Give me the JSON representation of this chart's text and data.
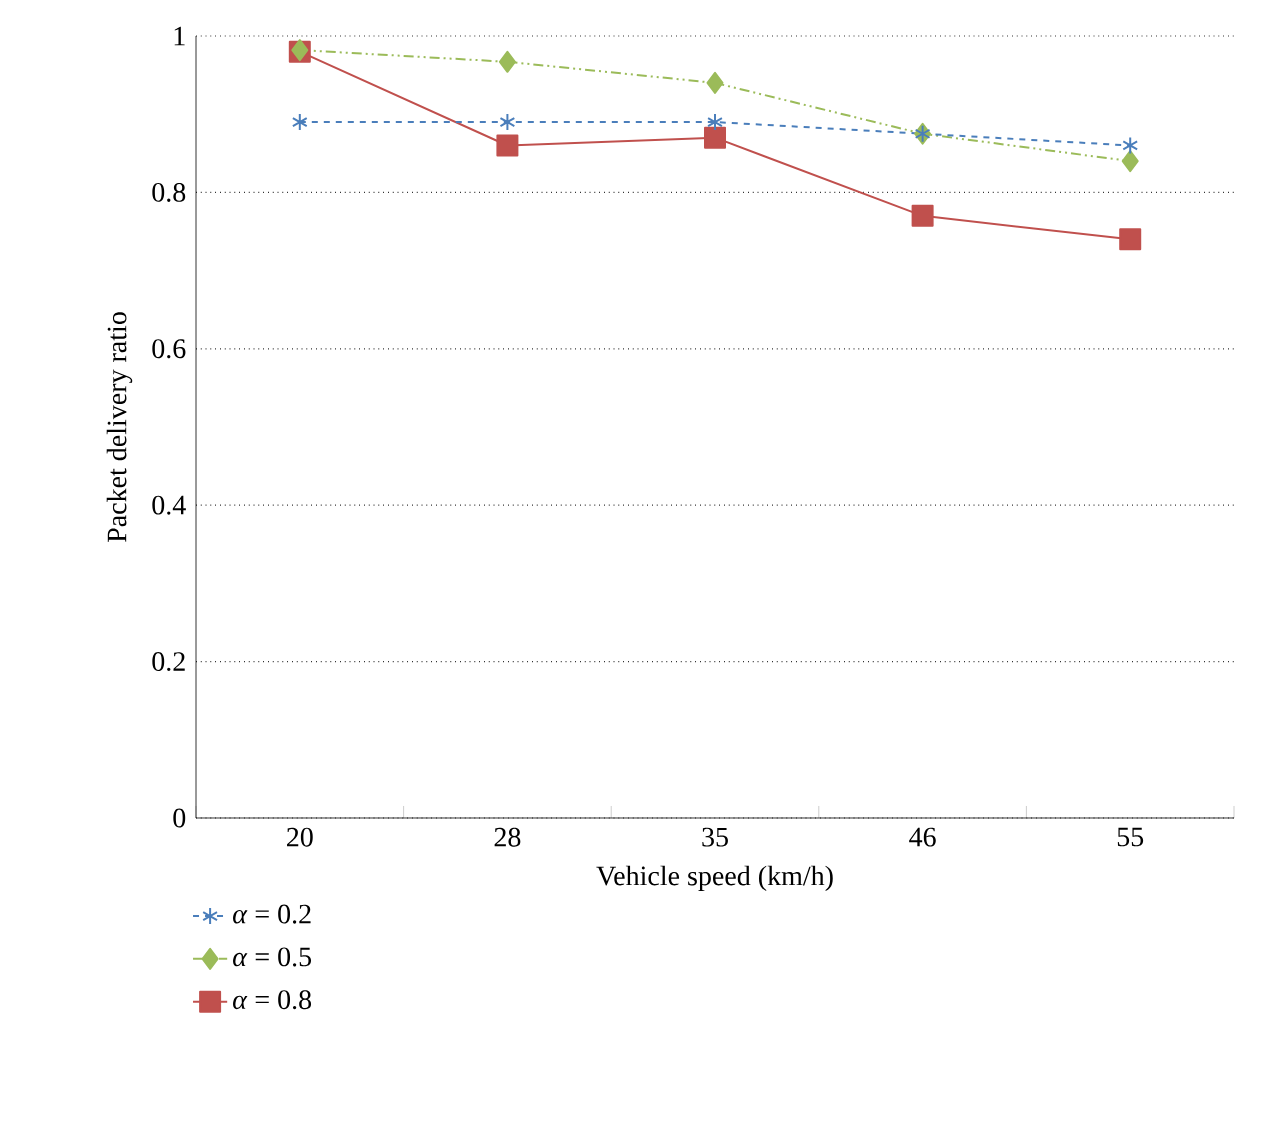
{
  "chart_data": {
    "type": "line",
    "xlabel": "Vehicle speed (km/h)",
    "ylabel": "Packet delivery ratio",
    "categories": [
      "20",
      "28",
      "35",
      "46",
      "55"
    ],
    "ylim": [
      0,
      1
    ],
    "yticks": [
      0,
      0.2,
      0.4,
      0.6,
      0.8,
      1
    ],
    "grid": "y",
    "legend": "bottom left",
    "series": [
      {
        "name": "*α* = 0.2",
        "color": "#4a7ebb",
        "marker": "cross",
        "line_style": "dashed",
        "values": [
          0.89,
          0.89,
          0.89,
          0.875,
          0.86
        ]
      },
      {
        "name": "*α* = 0.5",
        "color": "#9bbb59",
        "marker": "diamond",
        "line_style": "dotted",
        "values": [
          0.982,
          0.967,
          0.94,
          0.875,
          0.84
        ]
      },
      {
        "name": "*α* = 0.8",
        "color": "#c0504d",
        "marker": "square",
        "line_style": "solid",
        "values": [
          0.98,
          0.86,
          0.87,
          0.77,
          0.74
        ]
      }
    ]
  }
}
